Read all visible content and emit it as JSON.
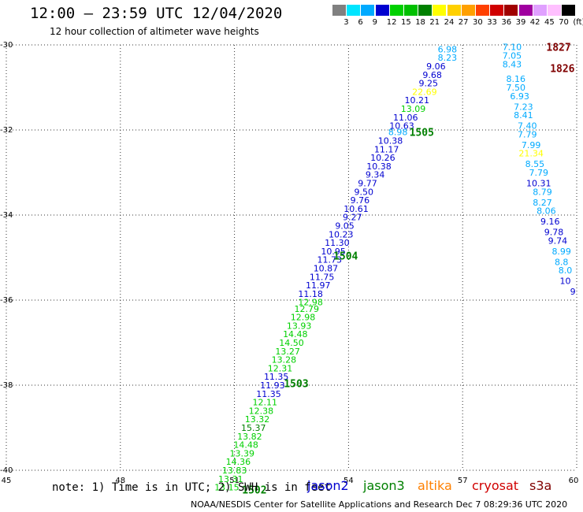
{
  "header": {
    "title": "12:00 – 23:59 UTC 12/04/2020",
    "subtitle": "12 hour collection of altimeter wave heights"
  },
  "colorbar": {
    "labels": [
      "3",
      "6",
      "9",
      "12",
      "15",
      "18",
      "21",
      "24",
      "27",
      "30",
      "33",
      "36",
      "39",
      "42",
      "45",
      "70",
      "(ft)"
    ],
    "colors": [
      "#808080",
      "#00e5ff",
      "#00aaff",
      "#0000d0",
      "#00d000",
      "#00c000",
      "#008000",
      "#ffff00",
      "#ffd000",
      "#ffa000",
      "#ff4000",
      "#d00000",
      "#a00000",
      "#a000a0",
      "#e0a0ff",
      "#ffc0ff",
      "#000000"
    ]
  },
  "map": {
    "lat_ticks": [
      "-30",
      "-32",
      "-34",
      "-36",
      "-38",
      "-40"
    ],
    "lon_ticks": [
      "45",
      "48",
      "51",
      "54",
      "57",
      "60"
    ],
    "lon_range": [
      45,
      60
    ],
    "lat_range": [
      -40,
      -30
    ]
  },
  "tracks": [
    {
      "points": [
        {
          "v": "6.98",
          "lon": 56.6,
          "lat": -30.1,
          "c": "#00aaff"
        },
        {
          "v": "8.23",
          "lon": 56.6,
          "lat": -30.3,
          "c": "#00aaff"
        },
        {
          "v": "9.06",
          "lon": 56.3,
          "lat": -30.5,
          "c": "#0000d0"
        },
        {
          "v": "9.68",
          "lon": 56.2,
          "lat": -30.7,
          "c": "#0000d0"
        },
        {
          "v": "9.25",
          "lon": 56.1,
          "lat": -30.9,
          "c": "#0000d0"
        },
        {
          "v": "22.69",
          "lon": 56.0,
          "lat": -31.1,
          "c": "#ffff00"
        },
        {
          "v": "10.21",
          "lon": 55.8,
          "lat": -31.3,
          "c": "#0000d0"
        },
        {
          "v": "13.09",
          "lon": 55.7,
          "lat": -31.5,
          "c": "#00d000"
        },
        {
          "v": "11.06",
          "lon": 55.5,
          "lat": -31.7,
          "c": "#0000d0"
        },
        {
          "v": "10.63",
          "lon": 55.4,
          "lat": -31.9,
          "c": "#0000d0"
        },
        {
          "v": "8.98",
          "lon": 55.3,
          "lat": -32.05,
          "c": "#00aaff"
        },
        {
          "v": "10.38",
          "lon": 55.1,
          "lat": -32.25,
          "c": "#0000d0"
        },
        {
          "v": "11.17",
          "lon": 55.0,
          "lat": -32.45,
          "c": "#0000d0"
        },
        {
          "v": "10.26",
          "lon": 54.9,
          "lat": -32.65,
          "c": "#0000d0"
        },
        {
          "v": "10.38",
          "lon": 54.8,
          "lat": -32.85,
          "c": "#0000d0"
        },
        {
          "v": "9.34",
          "lon": 54.7,
          "lat": -33.05,
          "c": "#0000d0"
        },
        {
          "v": "9.77",
          "lon": 54.5,
          "lat": -33.25,
          "c": "#0000d0"
        },
        {
          "v": "9.50",
          "lon": 54.4,
          "lat": -33.45,
          "c": "#0000d0"
        },
        {
          "v": "9.76",
          "lon": 54.3,
          "lat": -33.65,
          "c": "#0000d0"
        },
        {
          "v": "10.61",
          "lon": 54.2,
          "lat": -33.85,
          "c": "#0000d0"
        },
        {
          "v": "9.27",
          "lon": 54.1,
          "lat": -34.05,
          "c": "#0000d0"
        },
        {
          "v": "9.05",
          "lon": 53.9,
          "lat": -34.25,
          "c": "#0000d0"
        },
        {
          "v": "10.23",
          "lon": 53.8,
          "lat": -34.45,
          "c": "#0000d0"
        },
        {
          "v": "11.30",
          "lon": 53.7,
          "lat": -34.65,
          "c": "#0000d0"
        },
        {
          "v": "10.95",
          "lon": 53.6,
          "lat": -34.85,
          "c": "#0000d0"
        },
        {
          "v": "11.73",
          "lon": 53.5,
          "lat": -35.05,
          "c": "#0000d0"
        },
        {
          "v": "10.87",
          "lon": 53.4,
          "lat": -35.25,
          "c": "#0000d0"
        },
        {
          "v": "11.75",
          "lon": 53.3,
          "lat": -35.45,
          "c": "#0000d0"
        },
        {
          "v": "11.97",
          "lon": 53.2,
          "lat": -35.65,
          "c": "#0000d0"
        },
        {
          "v": "11.18",
          "lon": 53.0,
          "lat": -35.85,
          "c": "#0000d0"
        },
        {
          "v": "12.98",
          "lon": 53.0,
          "lat": -36.05,
          "c": "#00d000"
        },
        {
          "v": "12.79",
          "lon": 52.9,
          "lat": -36.2,
          "c": "#00d000"
        },
        {
          "v": "12.98",
          "lon": 52.8,
          "lat": -36.4,
          "c": "#00d000"
        },
        {
          "v": "13.93",
          "lon": 52.7,
          "lat": -36.6,
          "c": "#00d000"
        },
        {
          "v": "14.48",
          "lon": 52.6,
          "lat": -36.8,
          "c": "#00d000"
        },
        {
          "v": "14.50",
          "lon": 52.5,
          "lat": -37.0,
          "c": "#00d000"
        },
        {
          "v": "13.27",
          "lon": 52.4,
          "lat": -37.2,
          "c": "#00d000"
        },
        {
          "v": "13.28",
          "lon": 52.3,
          "lat": -37.4,
          "c": "#00d000"
        },
        {
          "v": "12.31",
          "lon": 52.2,
          "lat": -37.6,
          "c": "#00d000"
        },
        {
          "v": "11.35",
          "lon": 52.1,
          "lat": -37.8,
          "c": "#0000d0"
        },
        {
          "v": "11.93",
          "lon": 52.0,
          "lat": -38.0,
          "c": "#0000d0"
        },
        {
          "v": "11.35",
          "lon": 51.9,
          "lat": -38.2,
          "c": "#0000d0"
        },
        {
          "v": "12.11",
          "lon": 51.8,
          "lat": -38.4,
          "c": "#00d000"
        },
        {
          "v": "12.38",
          "lon": 51.7,
          "lat": -38.6,
          "c": "#00d000"
        },
        {
          "v": "13.32",
          "lon": 51.6,
          "lat": -38.8,
          "c": "#00d000"
        },
        {
          "v": "15.37",
          "lon": 51.5,
          "lat": -39.0,
          "c": "#008000"
        },
        {
          "v": "13.82",
          "lon": 51.4,
          "lat": -39.2,
          "c": "#00d000"
        },
        {
          "v": "14.48",
          "lon": 51.3,
          "lat": -39.4,
          "c": "#00d000"
        },
        {
          "v": "13.39",
          "lon": 51.2,
          "lat": -39.6,
          "c": "#00d000"
        },
        {
          "v": "14.36",
          "lon": 51.1,
          "lat": -39.8,
          "c": "#00d000"
        },
        {
          "v": "13.83",
          "lon": 51.0,
          "lat": -40.0,
          "c": "#00d000"
        },
        {
          "v": "13.31",
          "lon": 50.9,
          "lat": -40.2,
          "c": "#00d000"
        },
        {
          "v": "13.15",
          "lon": 50.8,
          "lat": -40.4,
          "c": "#00d000"
        }
      ]
    },
    {
      "points": [
        {
          "v": "7.10",
          "lon": 58.3,
          "lat": -30.05,
          "c": "#00aaff"
        },
        {
          "v": "7.05",
          "lon": 58.3,
          "lat": -30.25,
          "c": "#00aaff"
        },
        {
          "v": "8.43",
          "lon": 58.3,
          "lat": -30.45,
          "c": "#00aaff"
        },
        {
          "v": "8.16",
          "lon": 58.4,
          "lat": -30.8,
          "c": "#00aaff"
        },
        {
          "v": "7.50",
          "lon": 58.4,
          "lat": -31.0,
          "c": "#00aaff"
        },
        {
          "v": "6.93",
          "lon": 58.5,
          "lat": -31.2,
          "c": "#00aaff"
        },
        {
          "v": "7.23",
          "lon": 58.6,
          "lat": -31.45,
          "c": "#00aaff"
        },
        {
          "v": "8.41",
          "lon": 58.6,
          "lat": -31.65,
          "c": "#00aaff"
        },
        {
          "v": "7.40",
          "lon": 58.7,
          "lat": -31.9,
          "c": "#00aaff"
        },
        {
          "v": "7.79",
          "lon": 58.7,
          "lat": -32.1,
          "c": "#00aaff"
        },
        {
          "v": "7.99",
          "lon": 58.8,
          "lat": -32.35,
          "c": "#00aaff"
        },
        {
          "v": "21.34",
          "lon": 58.8,
          "lat": -32.55,
          "c": "#ffff00"
        },
        {
          "v": "8.55",
          "lon": 58.9,
          "lat": -32.8,
          "c": "#00aaff"
        },
        {
          "v": "7.79",
          "lon": 59.0,
          "lat": -33.0,
          "c": "#00aaff"
        },
        {
          "v": "10.31",
          "lon": 59.0,
          "lat": -33.25,
          "c": "#0000d0"
        },
        {
          "v": "8.79",
          "lon": 59.1,
          "lat": -33.45,
          "c": "#00aaff"
        },
        {
          "v": "8.27",
          "lon": 59.1,
          "lat": -33.7,
          "c": "#00aaff"
        },
        {
          "v": "8.06",
          "lon": 59.2,
          "lat": -33.9,
          "c": "#00aaff"
        },
        {
          "v": "9.16",
          "lon": 59.3,
          "lat": -34.15,
          "c": "#0000d0"
        },
        {
          "v": "9.78",
          "lon": 59.4,
          "lat": -34.4,
          "c": "#0000d0"
        },
        {
          "v": "9.74",
          "lon": 59.5,
          "lat": -34.6,
          "c": "#0000d0"
        },
        {
          "v": "8.99",
          "lon": 59.6,
          "lat": -34.85,
          "c": "#00aaff"
        },
        {
          "v": "8.8",
          "lon": 59.6,
          "lat": -35.1,
          "c": "#00aaff"
        },
        {
          "v": "8.0",
          "lon": 59.7,
          "lat": -35.3,
          "c": "#00aaff"
        },
        {
          "v": "10",
          "lon": 59.7,
          "lat": -35.55,
          "c": "#0000d0"
        },
        {
          "v": "9",
          "lon": 59.9,
          "lat": -35.8,
          "c": "#0000d0"
        }
      ]
    }
  ],
  "pass_labels": [
    {
      "text": "1505",
      "lon": 55.6,
      "lat": -32.05,
      "c": "#008000"
    },
    {
      "text": "1504",
      "lon": 53.6,
      "lat": -34.95,
      "c": "#008000"
    },
    {
      "text": "1503",
      "lon": 52.3,
      "lat": -37.95,
      "c": "#008000"
    },
    {
      "text": "1502",
      "lon": 51.2,
      "lat": -40.45,
      "c": "#008000"
    },
    {
      "text": "1827",
      "lon": 59.2,
      "lat": -30.05,
      "c": "#800000"
    },
    {
      "text": "1826",
      "lon": 59.3,
      "lat": -30.55,
      "c": "#800000"
    }
  ],
  "footer": {
    "note": "note: 1) Time is in UTC; 2) SWH is in feet",
    "legend": [
      {
        "name": "jason2",
        "color": "#0000d0"
      },
      {
        "name": "jason3",
        "color": "#008000"
      },
      {
        "name": "altika",
        "color": "#ff8000"
      },
      {
        "name": "cryosat",
        "color": "#d00000"
      },
      {
        "name": "s3a",
        "color": "#800000"
      }
    ],
    "credit": "NOAA/NESDIS Center for Satellite Applications and Research   Dec  7 08:29:36 UTC 2020"
  }
}
